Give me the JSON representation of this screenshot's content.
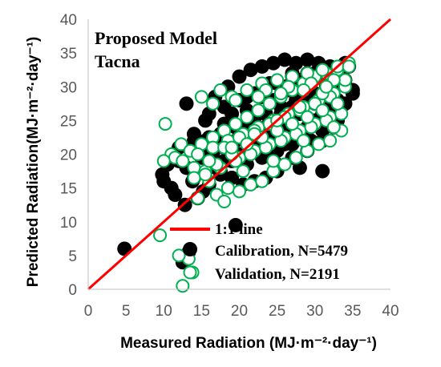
{
  "chart_data": {
    "type": "scatter",
    "title": "Proposed Model",
    "subtitle": "Tacna",
    "xlabel": "Measured Radiation (MJ·m⁻²·day⁻¹)",
    "ylabel": "Predicted Radiation(MJ·m⁻²·day⁻¹)",
    "xlim": [
      0,
      40
    ],
    "ylim": [
      0,
      40
    ],
    "xticks": [
      "0",
      "5",
      "10",
      "15",
      "20",
      "25",
      "30",
      "35",
      "40"
    ],
    "yticks": [
      "0",
      "5",
      "10",
      "15",
      "20",
      "25",
      "30",
      "35",
      "40"
    ],
    "grid": false,
    "legend_position": "bottom-right",
    "colors": {
      "calibration": "#000000",
      "validation": "#00b050",
      "one_to_one": "#ff0000"
    },
    "one_to_one_line": {
      "name": "1:1 line",
      "x": [
        0,
        40
      ],
      "y": [
        0,
        40
      ]
    },
    "series": [
      {
        "name": "Calibration, N=5479",
        "marker": "filled-circle",
        "x": [
          4.8,
          12.5,
          13.3,
          19.5,
          9.8,
          10.5,
          11.2,
          12.0,
          13.8,
          15.2,
          11.0,
          12.8,
          14.5,
          16.0,
          17.5,
          14.0,
          15.5,
          13.0,
          16.8,
          18.5,
          20.0,
          21.5,
          23.0,
          24.5,
          26.0,
          27.5,
          29.0,
          30.5,
          32.0,
          33.5,
          34.5,
          33.0,
          31.5,
          30.0,
          28.5,
          27.0,
          25.5,
          24.0,
          22.5,
          21.0,
          19.5,
          18.0,
          16.5,
          15.0,
          17.0,
          19.0,
          21.0,
          23.0,
          25.0,
          27.0,
          29.0,
          31.0,
          33.0,
          26.0,
          28.0,
          30.0,
          32.0,
          34.0,
          25.0,
          23.5,
          22.0,
          20.5,
          19.0,
          17.5,
          29.5,
          31.5,
          33.5,
          35.0,
          20.5,
          22.5,
          24.5,
          26.5,
          28.5,
          30.5,
          32.5,
          18.0,
          16.0,
          14.5,
          24.0,
          26.0,
          28.0,
          30.0,
          32.0,
          21.0,
          23.0,
          25.0,
          27.0,
          29.0,
          31.0,
          33.0,
          12.0,
          14.0,
          16.0,
          18.0,
          20.0,
          22.0,
          24.0,
          27.0,
          29.0,
          31.0,
          33.0,
          35.0,
          19.0,
          21.0,
          23.0,
          25.0,
          27.0,
          29.0,
          31.0,
          33.0,
          13.5,
          15.5,
          17.5,
          19.5,
          21.5,
          23.5,
          25.5,
          27.5,
          29.5,
          31.5,
          33.5,
          34.0,
          32.0,
          30.0,
          28.0,
          26.0,
          24.0,
          22.0,
          20.0,
          18.0,
          16.0,
          14.0,
          11.5,
          10.0,
          13.0,
          15.0,
          17.0,
          19.0,
          21.0,
          23.0,
          25.0,
          27.0,
          29.0,
          31.0,
          33.0,
          25.0,
          28.0,
          31.0,
          34.0,
          26.5,
          29.5,
          32.5
        ],
        "y": [
          6.0,
          4.0,
          5.5,
          9.5,
          17.0,
          18.5,
          20.0,
          21.0,
          16.0,
          14.5,
          15.0,
          12.5,
          13.5,
          15.5,
          17.0,
          23.0,
          25.0,
          27.5,
          28.5,
          30.0,
          31.5,
          32.5,
          33.0,
          33.5,
          34.0,
          33.5,
          34.0,
          33.5,
          33.0,
          32.5,
          33.0,
          31.0,
          30.0,
          29.0,
          28.0,
          27.0,
          26.0,
          25.0,
          24.0,
          23.0,
          22.0,
          21.0,
          20.0,
          19.5,
          18.0,
          19.0,
          20.0,
          21.0,
          22.0,
          23.0,
          24.0,
          26.0,
          28.0,
          30.0,
          31.0,
          32.0,
          31.5,
          31.0,
          17.5,
          16.5,
          16.0,
          15.5,
          16.5,
          17.5,
          22.0,
          24.5,
          27.0,
          29.0,
          24.0,
          26.0,
          28.0,
          29.5,
          30.5,
          31.5,
          30.0,
          24.5,
          22.5,
          21.5,
          20.0,
          21.5,
          23.0,
          25.0,
          27.0,
          18.5,
          19.5,
          20.5,
          21.5,
          22.5,
          23.5,
          25.0,
          19.0,
          22.0,
          26.0,
          27.0,
          28.0,
          29.0,
          30.5,
          19.5,
          20.5,
          22.0,
          26.5,
          29.5,
          26.0,
          28.5,
          29.5,
          30.5,
          31.5,
          32.0,
          32.5,
          32.0,
          21.0,
          22.0,
          23.0,
          24.0,
          25.0,
          26.0,
          27.0,
          28.0,
          29.0,
          30.0,
          31.0,
          33.5,
          29.0,
          27.5,
          26.0,
          24.5,
          23.0,
          21.5,
          20.0,
          19.0,
          18.0,
          16.5,
          14.0,
          16.0,
          18.0,
          20.5,
          22.5,
          24.5,
          26.5,
          28.5,
          30.5,
          32.0,
          31.0,
          29.0,
          28.0,
          18.5,
          18.0,
          17.5,
          27.5,
          26.0,
          25.0,
          24.0
        ]
      },
      {
        "name": "Validation, N=2191",
        "marker": "open-circle",
        "x": [
          12.5,
          13.8,
          13.3,
          12.0,
          9.5,
          10.2,
          11.0,
          12.3,
          14.0,
          15.5,
          16.0,
          17.0,
          18.5,
          20.0,
          21.5,
          23.0,
          24.5,
          26.0,
          27.5,
          29.0,
          30.5,
          32.0,
          33.5,
          34.5,
          33.0,
          31.5,
          30.0,
          28.5,
          27.0,
          25.5,
          24.0,
          22.5,
          21.0,
          19.5,
          18.0,
          16.5,
          15.0,
          13.5,
          11.5,
          12.5,
          14.5,
          16.5,
          18.5,
          20.5,
          22.5,
          24.5,
          26.5,
          28.5,
          30.5,
          32.5,
          34.0,
          19.0,
          21.0,
          23.0,
          25.0,
          27.0,
          29.0,
          31.0,
          33.0,
          20.0,
          22.0,
          24.0,
          26.0,
          28.0,
          30.0,
          32.0,
          15.5,
          17.5,
          19.5,
          21.5,
          23.5,
          25.5,
          27.5,
          29.5,
          31.5,
          33.5,
          18.0,
          20.0,
          22.0,
          24.0,
          26.0,
          28.0,
          30.0,
          32.0,
          34.0,
          17.0,
          19.0,
          21.0,
          23.0,
          25.0,
          27.0,
          29.0,
          31.0,
          33.0,
          23.5,
          26.5,
          29.5,
          32.5,
          31.0,
          28.0,
          25.0,
          22.0,
          19.0,
          16.0,
          14.0,
          16.5,
          19.5,
          22.5,
          25.5,
          28.5,
          31.5,
          34.5,
          20.5,
          24.5,
          28.5,
          32.5,
          10.0,
          15.0,
          17.5,
          14.5,
          18.0
        ],
        "y": [
          0.5,
          2.5,
          4.5,
          5.0,
          8.0,
          24.5,
          20.0,
          21.5,
          18.0,
          17.5,
          16.0,
          14.0,
          15.0,
          14.5,
          15.5,
          16.0,
          17.5,
          18.5,
          19.5,
          20.5,
          21.5,
          22.0,
          23.5,
          33.5,
          32.5,
          32.0,
          31.5,
          30.5,
          29.5,
          28.5,
          27.5,
          26.5,
          25.5,
          24.5,
          23.5,
          22.5,
          21.5,
          20.5,
          19.5,
          19.0,
          20.0,
          21.0,
          22.0,
          23.0,
          24.0,
          25.0,
          26.0,
          27.0,
          28.0,
          29.0,
          30.0,
          28.5,
          29.5,
          30.5,
          31.0,
          31.5,
          32.0,
          32.5,
          33.0,
          19.5,
          20.5,
          21.5,
          22.5,
          23.5,
          24.5,
          25.5,
          17.0,
          18.0,
          19.0,
          20.0,
          21.0,
          22.0,
          23.0,
          24.0,
          25.0,
          26.0,
          21.0,
          22.5,
          23.5,
          24.5,
          25.5,
          26.5,
          27.5,
          28.5,
          31.0,
          18.5,
          20.0,
          21.5,
          22.5,
          23.5,
          24.5,
          25.5,
          26.5,
          27.5,
          29.5,
          30.0,
          30.5,
          31.0,
          29.0,
          27.0,
          25.0,
          23.0,
          21.0,
          19.0,
          16.5,
          27.5,
          28.0,
          28.5,
          29.0,
          29.5,
          30.0,
          33.0,
          17.5,
          19.0,
          22.0,
          24.0,
          19.0,
          28.5,
          29.5,
          13.5,
          13.0
        ]
      }
    ]
  }
}
